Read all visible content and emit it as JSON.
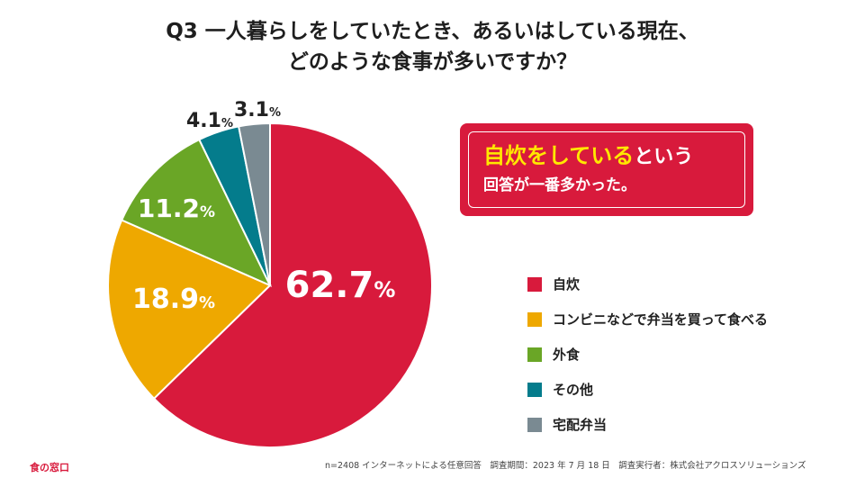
{
  "title": {
    "line1": "Q3 一人暮らしをしていたとき、あるいはしている現在、",
    "line2": "どのような食事が多いですか？"
  },
  "callout": {
    "highlight": "自炊をしている",
    "line1_rest": "という",
    "line2": "回答が一番多かった。"
  },
  "colors": {
    "jisui": "#d81a3c",
    "conbini": "#eea800",
    "gaishoku": "#6aa626",
    "sonota": "#047c8c",
    "takuhai": "#7a8a92"
  },
  "chart_data": {
    "type": "pie",
    "start": "top, clockwise",
    "labels": [
      "自炊",
      "コンビニなどで弁当を買って食べる",
      "外食",
      "その他",
      "宅配弁当"
    ],
    "values": [
      62.7,
      18.9,
      11.2,
      4.1,
      3.1
    ],
    "value_labels": [
      "62.7",
      "18.9",
      "11.2",
      "4.1",
      "3.1"
    ],
    "unit": "%",
    "legend_position": "right"
  },
  "footer": {
    "note": "n=2408 インターネットによる任意回答　調査期間：2023 年 7 月 18 日　調査実行者：株式会社アクロスソリューションズ",
    "logo": "食の窓口"
  }
}
